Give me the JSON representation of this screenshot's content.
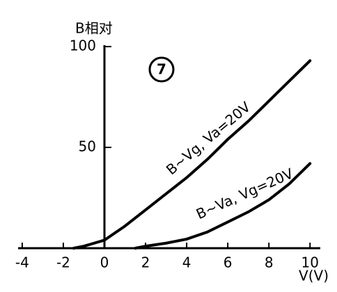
{
  "chart_data": {
    "type": "line",
    "y_label": "B相对",
    "x_label": "V(V)",
    "annotation": "7",
    "series": [
      {
        "name": "B~Vg, Va=20V",
        "color": "#000000",
        "x": [
          -1.5,
          -1,
          0,
          1,
          2,
          3,
          4,
          5,
          6,
          7,
          8,
          9,
          10
        ],
        "values": [
          0,
          1,
          4,
          11,
          19,
          27,
          35,
          44,
          54,
          63,
          73,
          83,
          93
        ]
      },
      {
        "name": "B~Va, Vg=20V",
        "color": "#000000",
        "x": [
          1.5,
          2,
          3,
          4,
          5,
          6,
          7,
          8,
          9,
          10
        ],
        "values": [
          0,
          1,
          2.5,
          4.5,
          8,
          13,
          18,
          24,
          32,
          42
        ]
      }
    ],
    "xlim": [
      -4.2,
      10.5
    ],
    "ylim": [
      0,
      100
    ],
    "xticks": [
      -4,
      -2,
      0,
      2,
      4,
      6,
      8,
      10
    ],
    "yticks": [
      50,
      100
    ],
    "grid": false
  }
}
